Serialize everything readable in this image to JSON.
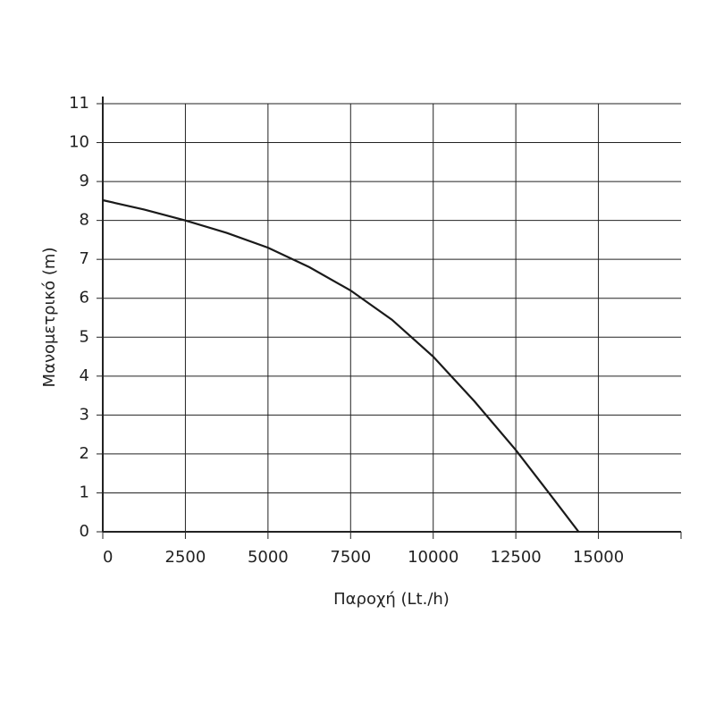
{
  "chart_data": {
    "type": "line",
    "xlabel": "Παροχή (Lt./h)",
    "ylabel": "Μανομετρικό (m)",
    "x": [
      0,
      1250,
      2500,
      3750,
      5000,
      6250,
      7500,
      8750,
      10000,
      11250,
      12500,
      13500,
      14400
    ],
    "series": [
      {
        "color": "#1a1a1a",
        "values": [
          8.52,
          8.28,
          8.0,
          7.68,
          7.3,
          6.8,
          6.2,
          5.45,
          4.5,
          3.35,
          2.1,
          1.0,
          0
        ]
      }
    ],
    "xlim": [
      0,
      17500
    ],
    "ylim": [
      0,
      11
    ],
    "xticks": [
      0,
      2500,
      5000,
      7500,
      10000,
      12500,
      15000
    ],
    "yticks": [
      0,
      1,
      2,
      3,
      4,
      5,
      6,
      7,
      8,
      9,
      10,
      11
    ],
    "grid": true
  }
}
